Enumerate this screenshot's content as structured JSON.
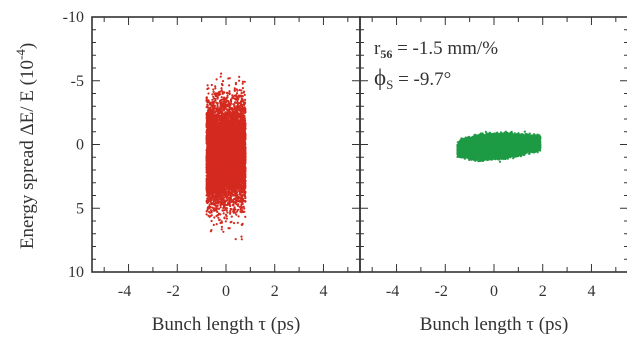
{
  "chart_data": [
    {
      "type": "scatter",
      "panel": "left",
      "xlabel": "Bunch length τ (ps)",
      "ylabel": "Energy spread ΔE/ E (10⁻⁴)",
      "xlim": [
        -5.5,
        5.5
      ],
      "ylim": [
        10,
        -10
      ],
      "y_axis_inverted": true,
      "xticks": [
        "-4",
        "-2",
        "0",
        "2",
        "4"
      ],
      "yticks": [
        "-10",
        "-5",
        "0",
        "5",
        "10"
      ],
      "series": [
        {
          "color": "#d42a1f",
          "distribution": {
            "shape": "uniform-in-x, gaussian-in-y",
            "x_range": [
              -0.8,
              0.8
            ],
            "y_center": 0.7,
            "y_sigma": 1.9,
            "y_range_observed": [
              -6.2,
              7.6
            ],
            "point_count": 9000
          }
        }
      ],
      "annotations": []
    },
    {
      "type": "scatter",
      "panel": "right",
      "xlabel": "Bunch length τ (ps)",
      "xlim": [
        -5.5,
        5.5
      ],
      "ylim": [
        10,
        -10
      ],
      "y_axis_inverted": true,
      "xticks": [
        "-4",
        "-2",
        "0",
        "2",
        "4"
      ],
      "yticks": [
        "-10",
        "-5",
        "0",
        "5",
        "10"
      ],
      "series": [
        {
          "color": "#1e9a45",
          "distribution": {
            "shape": "tilted compressed ellipse",
            "x_range": [
              -1.5,
              1.9
            ],
            "y_range": [
              -1.5,
              1.6
            ],
            "point_count": 6000
          }
        }
      ],
      "annotations": [
        {
          "symbol": "r",
          "subscript": "56",
          "text": " = -1.5 mm/%"
        },
        {
          "symbol": "ϕ",
          "subscript": "S",
          "text": " = -9.7°"
        }
      ]
    }
  ]
}
